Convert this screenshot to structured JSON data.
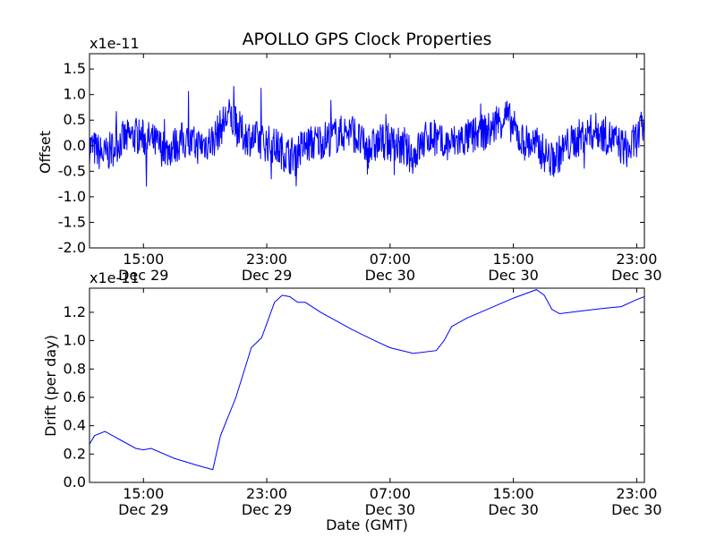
{
  "chart_data": [
    {
      "type": "line",
      "title": "APOLLO GPS Clock Properties",
      "ylabel": "Offset",
      "xlabel": "",
      "y_scale_note": "x1e-11",
      "ylim": [
        -2.0,
        1.8
      ],
      "yticks": [
        -2.0,
        -1.5,
        -1.0,
        -0.5,
        0.0,
        0.5,
        1.0,
        1.5
      ],
      "ytick_labels": [
        "-2.0",
        "-1.5",
        "-1.0",
        "-0.5",
        "0.0",
        "0.5",
        "1.0",
        "1.5"
      ],
      "xlim": [
        "2008-12-29 11:30",
        "2008-12-30 23:30"
      ],
      "xticks": [
        "2008-12-29 15:00",
        "2008-12-29 23:00",
        "2008-12-30 07:00",
        "2008-12-30 15:00",
        "2008-12-30 23:00"
      ],
      "xtick_labels": [
        [
          "15:00",
          "Dec 29"
        ],
        [
          "23:00",
          "Dec 29"
        ],
        [
          "07:00",
          "Dec 30"
        ],
        [
          "15:00",
          "Dec 30"
        ],
        [
          "23:00",
          "Dec 30"
        ]
      ],
      "series": [
        {
          "color": "#0000ff",
          "x": [
            "2008-12-29 11:30",
            "2008-12-29 12:30",
            "2008-12-29 13:30",
            "2008-12-29 14:30",
            "2008-12-29 15:30",
            "2008-12-29 16:30",
            "2008-12-29 17:30",
            "2008-12-29 18:30",
            "2008-12-29 19:30",
            "2008-12-29 20:30",
            "2008-12-29 21:30",
            "2008-12-29 22:30",
            "2008-12-29 23:30",
            "2008-12-30 00:30",
            "2008-12-30 01:30",
            "2008-12-30 02:30",
            "2008-12-30 03:30",
            "2008-12-30 04:30",
            "2008-12-30 05:30",
            "2008-12-30 06:30",
            "2008-12-30 07:30",
            "2008-12-30 08:30",
            "2008-12-30 09:30",
            "2008-12-30 10:30",
            "2008-12-30 11:30",
            "2008-12-30 12:30",
            "2008-12-30 13:30",
            "2008-12-30 14:30",
            "2008-12-30 15:30",
            "2008-12-30 16:30",
            "2008-12-30 17:30",
            "2008-12-30 18:30",
            "2008-12-30 19:30",
            "2008-12-30 20:30",
            "2008-12-30 21:30",
            "2008-12-30 22:30",
            "2008-12-30 23:30"
          ],
          "values": [
            0.0,
            -0.2,
            0.1,
            0.2,
            0.1,
            -0.1,
            0.1,
            0.0,
            0.1,
            0.6,
            0.2,
            0.1,
            0.0,
            -0.2,
            0.0,
            0.1,
            0.2,
            0.3,
            -0.1,
            0.1,
            0.0,
            -0.2,
            0.2,
            0.0,
            0.1,
            0.2,
            0.3,
            0.6,
            0.1,
            0.0,
            -0.3,
            0.0,
            0.2,
            0.3,
            0.1,
            -0.1,
            0.4
          ]
        }
      ]
    },
    {
      "type": "line",
      "title": "",
      "ylabel": "Drift (per day)",
      "xlabel": "Date (GMT)",
      "y_scale_note": "x1e-11",
      "ylim": [
        0.0,
        1.37
      ],
      "yticks": [
        0.0,
        0.2,
        0.4,
        0.6,
        0.8,
        1.0,
        1.2
      ],
      "ytick_labels": [
        "0.0",
        "0.2",
        "0.4",
        "0.6",
        "0.8",
        "1.0",
        "1.2"
      ],
      "xlim": [
        "2008-12-29 11:30",
        "2008-12-30 23:30"
      ],
      "xticks": [
        "2008-12-29 15:00",
        "2008-12-29 23:00",
        "2008-12-30 07:00",
        "2008-12-30 15:00",
        "2008-12-30 23:00"
      ],
      "xtick_labels": [
        [
          "15:00",
          "Dec 29"
        ],
        [
          "23:00",
          "Dec 29"
        ],
        [
          "07:00",
          "Dec 30"
        ],
        [
          "15:00",
          "Dec 30"
        ],
        [
          "23:00",
          "Dec 30"
        ]
      ],
      "series": [
        {
          "color": "#0000ff",
          "x": [
            "2008-12-29 11:30",
            "2008-12-29 11:50",
            "2008-12-29 12:30",
            "2008-12-29 13:30",
            "2008-12-29 14:30",
            "2008-12-29 15:00",
            "2008-12-29 15:30",
            "2008-12-29 17:00",
            "2008-12-29 18:30",
            "2008-12-29 19:30",
            "2008-12-29 20:00",
            "2008-12-29 21:00",
            "2008-12-29 22:00",
            "2008-12-29 22:40",
            "2008-12-29 23:30",
            "2008-12-30 00:00",
            "2008-12-30 00:30",
            "2008-12-30 01:00",
            "2008-12-30 01:30",
            "2008-12-30 02:30",
            "2008-12-30 04:30",
            "2008-12-30 06:00",
            "2008-12-30 07:00",
            "2008-12-30 08:30",
            "2008-12-30 10:00",
            "2008-12-30 10:30",
            "2008-12-30 11:00",
            "2008-12-30 12:00",
            "2008-12-30 13:30",
            "2008-12-30 15:00",
            "2008-12-30 16:30",
            "2008-12-30 17:00",
            "2008-12-30 17:30",
            "2008-12-30 18:00",
            "2008-12-30 19:30",
            "2008-12-30 21:00",
            "2008-12-30 22:00",
            "2008-12-30 23:00",
            "2008-12-30 23:30"
          ],
          "values": [
            0.27,
            0.33,
            0.36,
            0.3,
            0.24,
            0.23,
            0.24,
            0.17,
            0.12,
            0.09,
            0.33,
            0.6,
            0.95,
            1.02,
            1.27,
            1.32,
            1.31,
            1.27,
            1.27,
            1.2,
            1.08,
            1.0,
            0.95,
            0.91,
            0.93,
            1.0,
            1.1,
            1.16,
            1.23,
            1.3,
            1.36,
            1.32,
            1.22,
            1.19,
            1.21,
            1.23,
            1.24,
            1.29,
            1.31
          ]
        }
      ]
    }
  ]
}
